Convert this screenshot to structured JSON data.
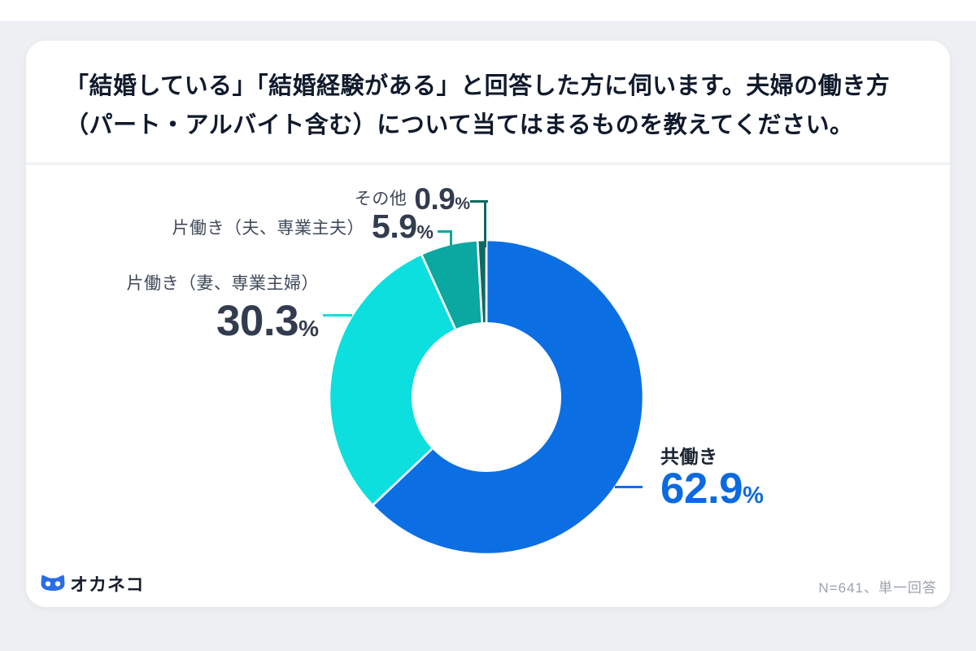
{
  "page": {
    "background": "#edeff2",
    "top_strip": "#ffffff",
    "card_background": "#ffffff"
  },
  "header": {
    "title_line1": "「結婚している」「結婚経験がある」と回答した方に伺います。夫婦の働き方",
    "title_line2": "（パート・アルバイト含む）について当てはまるものを教えてください。",
    "text_color": "#101a2c"
  },
  "chart_data": {
    "type": "pie",
    "variant": "donut",
    "title": "夫婦の働き方（パート・アルバイト含む）",
    "n": 641,
    "unit": "%",
    "inner_radius_ratio": 0.47,
    "start_angle_deg": 0,
    "direction": "clockwise",
    "segments": [
      {
        "label": "共働き",
        "value": 62.9,
        "value_text": "62.9",
        "color": "#0b6fe3",
        "value_color": "#0b6adf"
      },
      {
        "label": "片働き（妻、専業主婦）",
        "value": 30.3,
        "value_text": "30.3",
        "color": "#0cdfde",
        "value_color": "#323c4e"
      },
      {
        "label": "片働き（夫、専業主夫）",
        "value": 5.9,
        "value_text": "5.9",
        "color": "#0ba7a1",
        "value_color": "#323c4e"
      },
      {
        "label": "その他",
        "value": 0.9,
        "value_text": "0.9",
        "color": "#0c6b60",
        "value_color": "#323c4e"
      }
    ]
  },
  "footer": {
    "brand": "オカネコ",
    "brand_color": "#2b6ce8",
    "note": "N=641、単一回答"
  }
}
